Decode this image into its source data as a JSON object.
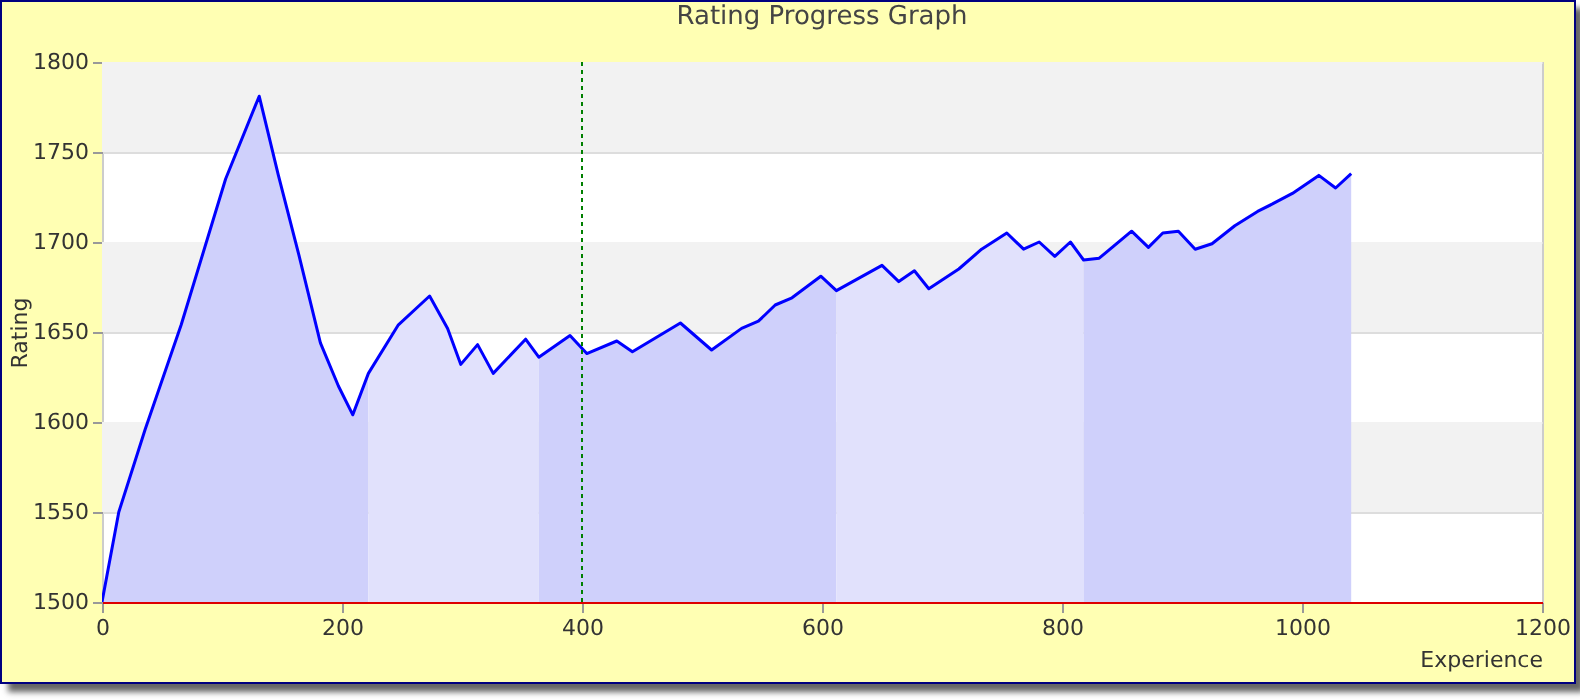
{
  "chart_data": {
    "type": "area",
    "title": "Rating Progress Graph",
    "xlabel": "Experience",
    "ylabel": "Rating",
    "xlim": [
      0,
      1200
    ],
    "xticks": [
      0,
      200,
      400,
      600,
      800,
      1000,
      1200
    ],
    "ylim": [
      1500,
      1800
    ],
    "yticks": [
      1500,
      1550,
      1600,
      1650,
      1700,
      1750,
      1800
    ],
    "grid": "y",
    "line_style": "solid",
    "marker": "none",
    "ref_lines": [
      {
        "axis": "x",
        "value": 400,
        "color": "#008000",
        "line_style": "dotted"
      }
    ],
    "bands": [
      {
        "axis": "y",
        "from": 1550,
        "to": 1600,
        "color": "#f2f2f2"
      },
      {
        "axis": "y",
        "from": 1650,
        "to": 1700,
        "color": "#f2f2f2"
      },
      {
        "axis": "y",
        "from": 1750,
        "to": 1800,
        "color": "#f2f2f2"
      }
    ],
    "series": [
      {
        "type": "area",
        "color": "#cfd0fb",
        "x": [
          0,
          14,
          36,
          66,
          103,
          131,
          147,
          164,
          182,
          197,
          209,
          222
        ],
        "values": [
          1500,
          1550,
          1596,
          1654,
          1735,
          1781,
          1737,
          1693,
          1644,
          1620,
          1604,
          1627
        ]
      },
      {
        "type": "area",
        "color": "#e1e1fc",
        "x": [
          222,
          247,
          273,
          288,
          299,
          313,
          326,
          353,
          364
        ],
        "values": [
          1627,
          1654,
          1670,
          1652,
          1632,
          1643,
          1627,
          1646,
          1636
        ]
      },
      {
        "type": "area",
        "color": "#cfd0fb",
        "x": [
          364,
          390,
          404,
          429,
          442,
          482,
          508,
          533,
          547,
          561,
          575,
          599,
          612
        ],
        "values": [
          1636,
          1648,
          1638,
          1645,
          1639,
          1655,
          1640,
          1652,
          1656,
          1665,
          1669,
          1681,
          1673
        ]
      },
      {
        "type": "area",
        "color": "#e1e1fc",
        "x": [
          612,
          650,
          664,
          677,
          689,
          714,
          733,
          754,
          768,
          781,
          794,
          807,
          818
        ],
        "values": [
          1673,
          1687,
          1678,
          1684,
          1674,
          1685,
          1696,
          1705,
          1696,
          1700,
          1692,
          1700,
          1690
        ]
      },
      {
        "type": "area",
        "color": "#cfd0fb",
        "x": [
          818,
          831,
          858,
          872,
          884,
          897,
          911,
          925,
          944,
          963,
          975,
          992,
          1014,
          1028,
          1041
        ],
        "values": [
          1690,
          1691,
          1706,
          1697,
          1705,
          1706,
          1696,
          1699,
          1709,
          1717,
          1721,
          1727,
          1737,
          1730,
          1738
        ]
      },
      {
        "type": "line",
        "color": "#0000ff",
        "x": [
          0,
          14,
          36,
          66,
          103,
          131,
          147,
          164,
          182,
          197,
          209,
          222,
          247,
          273,
          288,
          299,
          313,
          326,
          353,
          364,
          390,
          404,
          429,
          442,
          482,
          508,
          533,
          547,
          561,
          575,
          599,
          612,
          650,
          664,
          677,
          689,
          714,
          733,
          754,
          768,
          781,
          794,
          807,
          818,
          831,
          858,
          872,
          884,
          897,
          911,
          925,
          944,
          963,
          975,
          992,
          1014,
          1028,
          1041
        ],
        "values": [
          1500,
          1550,
          1596,
          1654,
          1735,
          1781,
          1737,
          1693,
          1644,
          1620,
          1604,
          1627,
          1654,
          1670,
          1652,
          1632,
          1643,
          1627,
          1646,
          1636,
          1648,
          1638,
          1645,
          1639,
          1655,
          1640,
          1652,
          1656,
          1665,
          1669,
          1681,
          1673,
          1687,
          1678,
          1684,
          1674,
          1685,
          1696,
          1705,
          1696,
          1700,
          1692,
          1700,
          1690,
          1691,
          1706,
          1697,
          1705,
          1706,
          1696,
          1699,
          1709,
          1717,
          1721,
          1727,
          1737,
          1730,
          1738
        ]
      }
    ]
  }
}
